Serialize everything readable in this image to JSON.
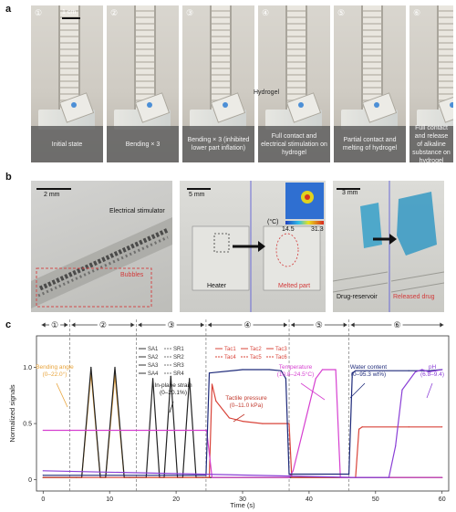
{
  "panels": {
    "a": {
      "letter": "a",
      "scale": "1 cm",
      "hydrogel": "Hydrogel",
      "photos": [
        {
          "num": "①",
          "caption": "Initial state"
        },
        {
          "num": "②",
          "caption": "Bending × 3"
        },
        {
          "num": "③",
          "caption": "Bending × 3 (inhibited lower part inflation)"
        },
        {
          "num": "④",
          "caption": "Full contact and electrical stimulation on hydrogel"
        },
        {
          "num": "⑤",
          "caption": "Partial contact and melting of hydrogel"
        },
        {
          "num": "⑥",
          "caption": "Full contact and release of alkaline substance on hydrogel"
        }
      ]
    },
    "b": {
      "letter": "b",
      "img1": {
        "scale": "2 mm",
        "stimulator": "Electrical stimulator",
        "bubbles": "Bubbles"
      },
      "img2": {
        "scale": "5 mm",
        "heater": "Heater",
        "melted": "Melted part",
        "unit": "(°C)",
        "cmin": "14.5",
        "cmax": "31.3"
      },
      "img3": {
        "scale": "3 mm",
        "reservoir": "Drug-reservoir",
        "released": "Released drug"
      }
    },
    "c": {
      "letter": "c"
    }
  },
  "chart_data": {
    "type": "line",
    "xlabel": "Time (s)",
    "ylabel": "Normalized signals",
    "xlim": [
      -1,
      61
    ],
    "ylim": [
      -0.1,
      1.28
    ],
    "xticks": [
      "0",
      "10",
      "20",
      "30",
      "40",
      "50",
      "60"
    ],
    "yticks": [
      "0",
      "0.5",
      "1.0"
    ],
    "stage_boundaries": [
      4,
      14,
      24.5,
      37,
      46
    ],
    "stages": [
      {
        "label": "①",
        "start": -0.5,
        "end": 4
      },
      {
        "label": "②",
        "start": 4,
        "end": 14
      },
      {
        "label": "③",
        "start": 14,
        "end": 24.5
      },
      {
        "label": "④",
        "start": 24.5,
        "end": 37
      },
      {
        "label": "⑤",
        "start": 37,
        "end": 46
      },
      {
        "label": "⑥",
        "start": 46,
        "end": 60.5
      }
    ],
    "legend_strain": [
      "SA1",
      "SR1",
      "SA2",
      "SR2",
      "SA3",
      "SR3",
      "SA4",
      "SR4"
    ],
    "legend_tactile": [
      "Tac1",
      "Tac2",
      "Tac3",
      "Tac4",
      "Tac5",
      "Tac6"
    ],
    "annotations": {
      "bending": "Bending angle",
      "bending_range": "(0–22.0°)",
      "strain": "In-plane strain",
      "strain_range": "(0–20.1%)",
      "tactile": "Tactile pressure",
      "tactile_range": "(0–11.0 kPa)",
      "temperature": "Temperature",
      "temperature_range": "(10.8–24.5°C)",
      "water": "Water content",
      "water_range": "(0–95.3 wt%)",
      "ph": "pH",
      "ph_range": "(6.8–9.4)"
    },
    "series": [
      {
        "name": "Bending angle",
        "color": "#e8a33a",
        "x": [
          0,
          5,
          5.8,
          7.2,
          8.6,
          9.4,
          10.8,
          12.2,
          13.0,
          14,
          24,
          60
        ],
        "y": [
          0.02,
          0.02,
          0.02,
          0.95,
          0.02,
          0.02,
          0.93,
          0.02,
          0.02,
          0.02,
          0.02,
          0.02
        ]
      },
      {
        "name": "In-plane strain",
        "color": "#222222",
        "x": [
          0,
          5,
          5.8,
          7.2,
          8.6,
          9.4,
          10.8,
          12.2,
          13.0,
          15.5,
          16.5,
          17.5,
          18.2,
          19.2,
          20.2,
          21.0,
          22.0,
          23.0,
          24,
          60
        ],
        "y": [
          0.02,
          0.02,
          0.02,
          1.0,
          0.02,
          0.02,
          1.0,
          0.02,
          0.02,
          0.02,
          0.9,
          0.02,
          0.02,
          0.92,
          0.02,
          0.02,
          0.9,
          0.02,
          0.02,
          0.02
        ]
      },
      {
        "name": "Tactile pressure",
        "color": "#d9443a",
        "x": [
          0,
          25,
          25.4,
          26,
          28,
          30,
          33,
          37,
          37.4,
          47,
          47.5,
          48,
          55,
          60
        ],
        "y": [
          0.02,
          0.02,
          0.85,
          0.7,
          0.55,
          0.52,
          0.5,
          0.5,
          0.02,
          0.02,
          0.45,
          0.47,
          0.47,
          0.47
        ]
      },
      {
        "name": "Temperature",
        "color": "#d640d0",
        "x": [
          0,
          24.6,
          25.4,
          37,
          37.6,
          41,
          42,
          44,
          44.7,
          47,
          60
        ],
        "y": [
          0.44,
          0.44,
          0.02,
          0.02,
          0.08,
          0.9,
          0.98,
          0.98,
          0.02,
          0.02,
          0.02
        ]
      },
      {
        "name": "Water content",
        "color": "#1e2a7a",
        "x": [
          0,
          24.5,
          25,
          30,
          34,
          35.8,
          36.5,
          37,
          37.5,
          46,
          46.5,
          47,
          55,
          58,
          60
        ],
        "y": [
          0.04,
          0.04,
          0.95,
          0.98,
          0.98,
          0.97,
          0.9,
          0.05,
          0.05,
          0.05,
          0.95,
          0.97,
          0.97,
          0.97,
          0.98
        ]
      },
      {
        "name": "pH",
        "color": "#8a3fd6",
        "x": [
          0,
          47,
          52,
          53,
          54,
          56,
          57,
          58,
          60
        ],
        "y": [
          0.08,
          0.02,
          0.02,
          0.3,
          0.8,
          0.96,
          0.98,
          0.96,
          0.98
        ]
      }
    ]
  }
}
